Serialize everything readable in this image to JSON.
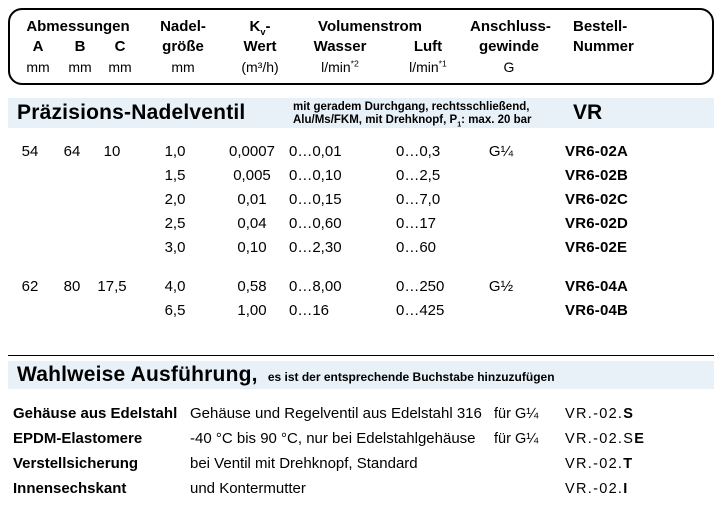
{
  "colors": {
    "band": "#e8f1f8",
    "text": "#000000",
    "border": "#000000"
  },
  "header": {
    "abmessungen": "Abmessungen",
    "dims": [
      "A",
      "B",
      "C"
    ],
    "dim_unit": "mm",
    "nadel_line1": "Nadel-",
    "nadel_line2": "größe",
    "nadel_unit": "mm",
    "kv_k": "K",
    "kv_sub": "v",
    "kv_dash": "-",
    "kv_line2": "Wert",
    "kv_unit": "(m³/h)",
    "volumenstrom": "Volumenstrom",
    "wasser": "Wasser",
    "wasser_unit_base": "l/min",
    "wasser_unit_sup": "*2",
    "luft": "Luft",
    "luft_unit_base": "l/min",
    "luft_unit_sup": "*1",
    "anschluss_line1": "Anschluss-",
    "anschluss_line2": "gewinde",
    "anschluss_unit": "G",
    "bestell_line1": "Bestell-",
    "bestell_line2": "Nummer"
  },
  "section1": {
    "title": "Präzisions-Nadelventil",
    "desc_line1": "mit geradem Durchgang, rechtsschließend,",
    "desc_line2_pre": "Alu/Ms/FKM, mit Drehknopf, P",
    "desc_line2_sub": "1",
    "desc_line2_post": ": max. 20 bar",
    "series": "VR",
    "range_prefix": "0…",
    "rows": [
      {
        "a": "54",
        "b": "64",
        "c": "10",
        "needle": "1,0",
        "kv": "0,0007",
        "wasser": "0,01",
        "luft": "0,3",
        "thread": "G¼",
        "order": "VR6-02A"
      },
      {
        "needle": "1,5",
        "kv": "0,005",
        "wasser": "0,10",
        "luft": "2,5",
        "order": "VR6-02B"
      },
      {
        "needle": "2,0",
        "kv": "0,01",
        "wasser": "0,15",
        "luft": "7,0",
        "order": "VR6-02C"
      },
      {
        "needle": "2,5",
        "kv": "0,04",
        "wasser": "0,60",
        "luft": "17",
        "order": "VR6-02D"
      },
      {
        "needle": "3,0",
        "kv": "0,10",
        "wasser": "2,30",
        "luft": "60",
        "order": "VR6-02E"
      },
      {
        "a": "62",
        "b": "80",
        "c": "17,5",
        "needle": "4,0",
        "kv": "0,58",
        "wasser": "8,00",
        "luft": "250",
        "thread": "G½",
        "order": "VR6-04A"
      },
      {
        "needle": "6,5",
        "kv": "1,00",
        "wasser": "16",
        "luft": "425",
        "order": "VR6-04B"
      }
    ]
  },
  "section2": {
    "title": "Wahlweise Ausführung,",
    "subtitle": "es ist der entsprechende Buchstabe hinzuzufügen",
    "options": [
      {
        "label": "Gehäuse aus Edelstahl",
        "desc": "Gehäuse und Regelventil aus Edelstahl 316",
        "fits": "für G¼",
        "code_prefix": "VR.-02.",
        "code_suffix": "S"
      },
      {
        "label": "EPDM-Elastomere",
        "desc": "-40 °C bis 90 °C, nur bei Edelstahlgehäuse",
        "fits": "für G¼",
        "code_prefix": "VR.-02.S",
        "code_suffix": "E"
      },
      {
        "label": "Verstellsicherung",
        "desc": "bei Ventil mit Drehknopf, Standard",
        "code_prefix": "VR.-02.",
        "code_suffix": "T"
      },
      {
        "label": "Innensechskant",
        "desc": "und Kontermutter",
        "code_prefix": "VR.-02.",
        "code_suffix": "I"
      }
    ]
  }
}
